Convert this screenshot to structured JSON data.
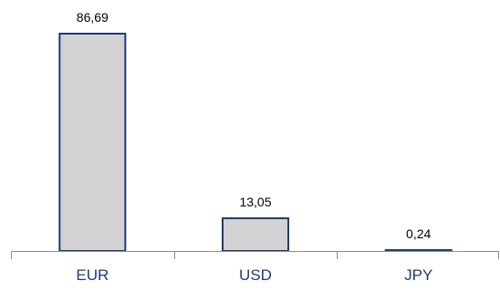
{
  "chart_data": {
    "type": "bar",
    "categories": [
      "EUR",
      "USD",
      "JPY"
    ],
    "values": [
      86.69,
      13.05,
      0.24
    ],
    "data_labels": [
      "86,69",
      "13,05",
      "0,24"
    ],
    "title": "",
    "xlabel": "",
    "ylabel": "",
    "ylim": [
      0,
      86.69
    ],
    "grid": false,
    "legend": "none",
    "colors": {
      "bar_fill": "#d3d1d2",
      "bar_stroke": "#1f3a7a",
      "category_text": "#1f3a7a",
      "axis": "#8c8c8c"
    }
  }
}
